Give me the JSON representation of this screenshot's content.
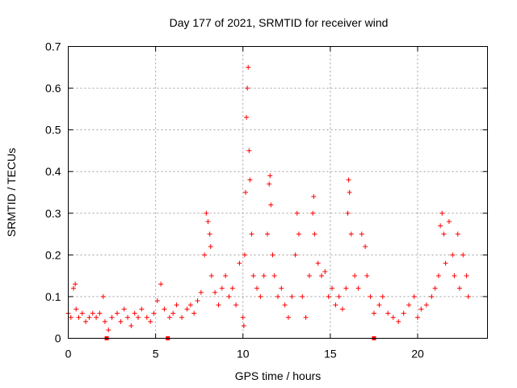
{
  "chart_data": {
    "type": "scatter",
    "title": "Day 177 of 2021, SRMTID for receiver wind",
    "xlabel": "GPS time / hours",
    "ylabel": "SRMTID / TECUs",
    "xlim": [
      0,
      24
    ],
    "ylim": [
      0,
      0.7
    ],
    "xticks": [
      0,
      5,
      10,
      15,
      20
    ],
    "xtick_labels": [
      "0",
      "5",
      "10",
      "15",
      "20"
    ],
    "yticks": [
      0,
      0.1,
      0.2,
      0.3,
      0.4,
      0.5,
      0.6,
      0.7
    ],
    "ytick_labels": [
      "0",
      "0.1",
      "0.2",
      "0.3",
      "0.4",
      "0.5",
      "0.6",
      "0.7"
    ],
    "grid": true,
    "marker": "plus",
    "color": "#ff0000",
    "series": [
      {
        "name": "SRMTID",
        "points": [
          [
            0.0,
            0.06
          ],
          [
            0.15,
            0.05
          ],
          [
            0.3,
            0.12
          ],
          [
            0.4,
            0.13
          ],
          [
            0.45,
            0.07
          ],
          [
            0.6,
            0.05
          ],
          [
            0.8,
            0.06
          ],
          [
            1.0,
            0.04
          ],
          [
            1.2,
            0.05
          ],
          [
            1.4,
            0.06
          ],
          [
            1.6,
            0.05
          ],
          [
            1.8,
            0.06
          ],
          [
            2.0,
            0.1
          ],
          [
            2.1,
            0.04
          ],
          [
            2.3,
            0.02
          ],
          [
            2.5,
            0.05
          ],
          [
            2.8,
            0.06
          ],
          [
            3.0,
            0.04
          ],
          [
            3.2,
            0.07
          ],
          [
            3.4,
            0.05
          ],
          [
            3.6,
            0.03
          ],
          [
            3.8,
            0.06
          ],
          [
            4.0,
            0.05
          ],
          [
            4.2,
            0.07
          ],
          [
            4.5,
            0.05
          ],
          [
            4.7,
            0.04
          ],
          [
            4.9,
            0.06
          ],
          [
            5.1,
            0.09
          ],
          [
            5.3,
            0.13
          ],
          [
            5.5,
            0.07
          ],
          [
            5.8,
            0.05
          ],
          [
            6.0,
            0.06
          ],
          [
            6.2,
            0.08
          ],
          [
            6.5,
            0.05
          ],
          [
            6.8,
            0.07
          ],
          [
            7.0,
            0.08
          ],
          [
            7.2,
            0.06
          ],
          [
            7.4,
            0.09
          ],
          [
            7.6,
            0.11
          ],
          [
            7.8,
            0.2
          ],
          [
            7.9,
            0.3
          ],
          [
            8.0,
            0.28
          ],
          [
            8.1,
            0.25
          ],
          [
            8.15,
            0.22
          ],
          [
            8.2,
            0.15
          ],
          [
            8.4,
            0.11
          ],
          [
            8.6,
            0.08
          ],
          [
            8.8,
            0.12
          ],
          [
            9.0,
            0.15
          ],
          [
            9.2,
            0.1
          ],
          [
            9.4,
            0.12
          ],
          [
            9.6,
            0.08
          ],
          [
            9.8,
            0.18
          ],
          [
            10.0,
            0.05
          ],
          [
            10.05,
            0.03
          ],
          [
            10.1,
            0.2
          ],
          [
            10.15,
            0.35
          ],
          [
            10.2,
            0.53
          ],
          [
            10.25,
            0.6
          ],
          [
            10.3,
            0.65
          ],
          [
            10.35,
            0.45
          ],
          [
            10.4,
            0.38
          ],
          [
            10.5,
            0.25
          ],
          [
            10.6,
            0.15
          ],
          [
            10.8,
            0.12
          ],
          [
            11.0,
            0.1
          ],
          [
            11.2,
            0.15
          ],
          [
            11.4,
            0.25
          ],
          [
            11.5,
            0.37
          ],
          [
            11.55,
            0.39
          ],
          [
            11.6,
            0.32
          ],
          [
            11.7,
            0.2
          ],
          [
            11.8,
            0.15
          ],
          [
            12.0,
            0.1
          ],
          [
            12.2,
            0.12
          ],
          [
            12.4,
            0.08
          ],
          [
            12.6,
            0.05
          ],
          [
            12.8,
            0.1
          ],
          [
            13.0,
            0.2
          ],
          [
            13.1,
            0.3
          ],
          [
            13.2,
            0.25
          ],
          [
            13.4,
            0.1
          ],
          [
            13.6,
            0.05
          ],
          [
            13.8,
            0.15
          ],
          [
            14.0,
            0.3
          ],
          [
            14.05,
            0.34
          ],
          [
            14.1,
            0.25
          ],
          [
            14.3,
            0.18
          ],
          [
            14.5,
            0.15
          ],
          [
            14.7,
            0.16
          ],
          [
            14.9,
            0.1
          ],
          [
            15.1,
            0.12
          ],
          [
            15.3,
            0.08
          ],
          [
            15.5,
            0.1
          ],
          [
            15.7,
            0.07
          ],
          [
            15.9,
            0.12
          ],
          [
            16.0,
            0.3
          ],
          [
            16.05,
            0.38
          ],
          [
            16.1,
            0.35
          ],
          [
            16.2,
            0.25
          ],
          [
            16.4,
            0.15
          ],
          [
            16.6,
            0.12
          ],
          [
            16.8,
            0.25
          ],
          [
            17.0,
            0.22
          ],
          [
            17.1,
            0.15
          ],
          [
            17.3,
            0.1
          ],
          [
            17.5,
            0.06
          ],
          [
            17.8,
            0.08
          ],
          [
            18.0,
            0.1
          ],
          [
            18.3,
            0.06
          ],
          [
            18.6,
            0.05
          ],
          [
            18.9,
            0.04
          ],
          [
            19.2,
            0.06
          ],
          [
            19.5,
            0.08
          ],
          [
            19.8,
            0.1
          ],
          [
            20.0,
            0.05
          ],
          [
            20.2,
            0.07
          ],
          [
            20.5,
            0.08
          ],
          [
            20.8,
            0.1
          ],
          [
            21.0,
            0.12
          ],
          [
            21.2,
            0.15
          ],
          [
            21.3,
            0.27
          ],
          [
            21.4,
            0.3
          ],
          [
            21.5,
            0.25
          ],
          [
            21.6,
            0.18
          ],
          [
            21.8,
            0.28
          ],
          [
            22.0,
            0.2
          ],
          [
            22.1,
            0.15
          ],
          [
            22.3,
            0.25
          ],
          [
            22.4,
            0.12
          ],
          [
            22.6,
            0.2
          ],
          [
            22.8,
            0.15
          ],
          [
            22.9,
            0.1
          ]
        ]
      }
    ],
    "gap_markers_x": [
      2.2,
      5.7,
      17.5
    ]
  }
}
